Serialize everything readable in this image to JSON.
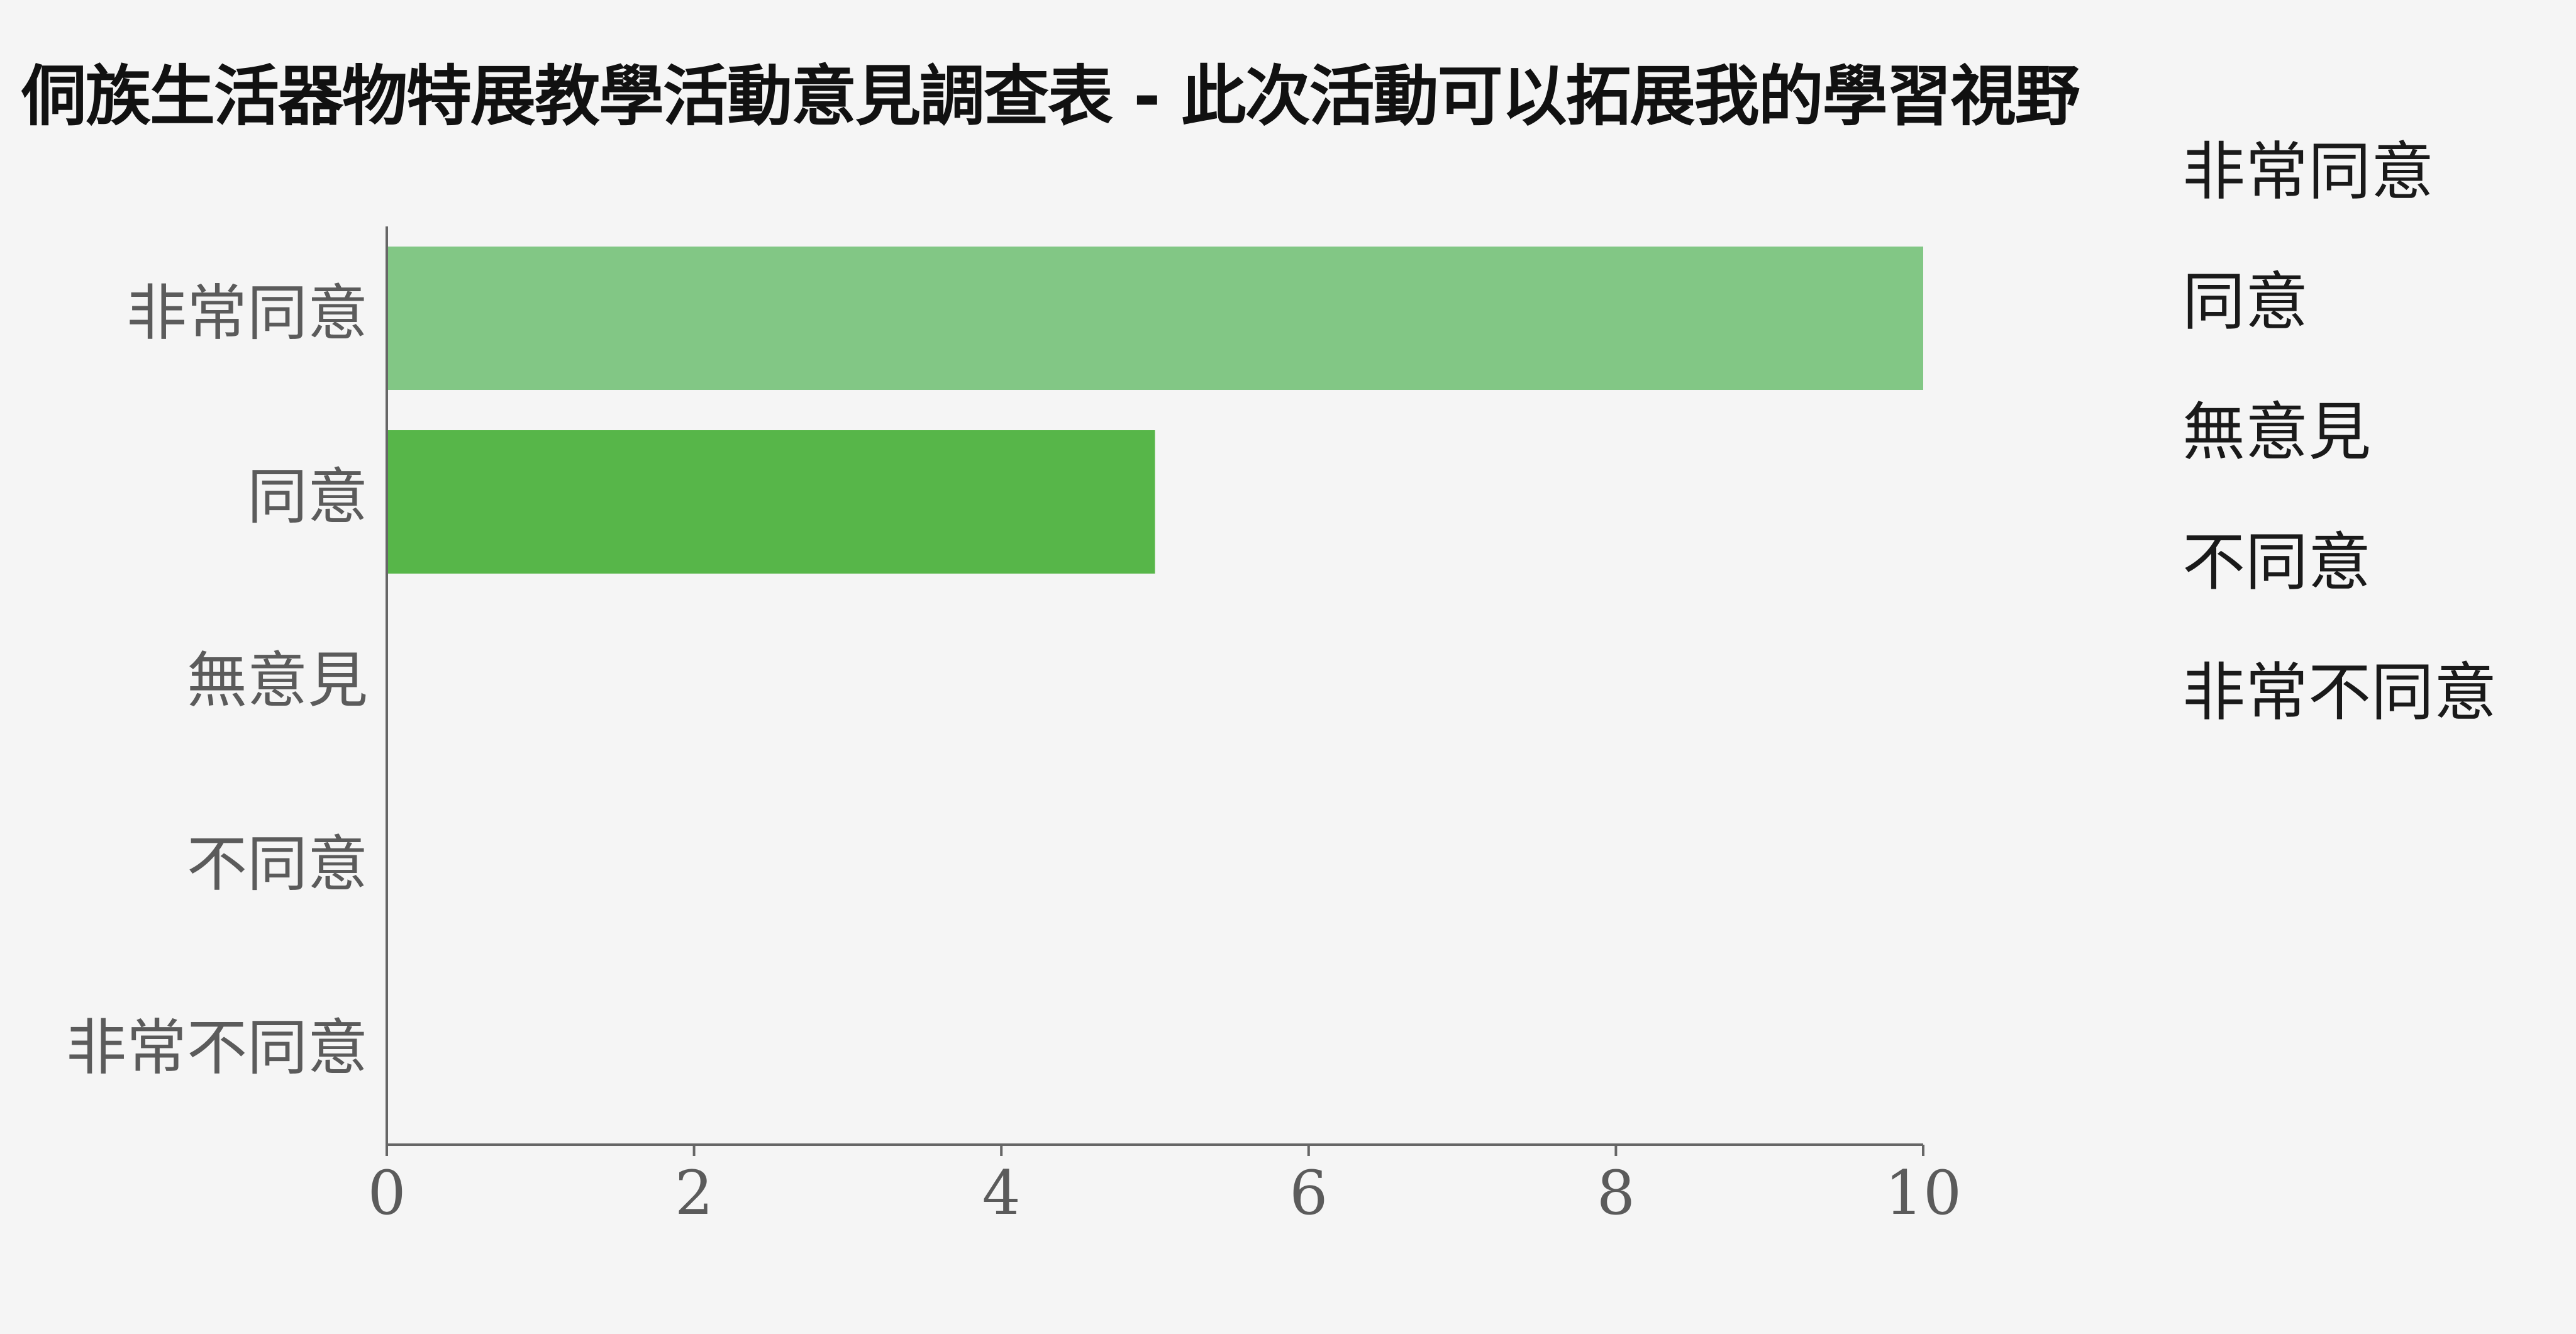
{
  "chart_data": {
    "type": "bar",
    "orientation": "horizontal",
    "title": "侗族生活器物特展教學活動意見調查表 - 此次活動可以拓展我的學習視野",
    "categories": [
      "非常同意",
      "同意",
      "無意見",
      "不同意",
      "非常不同意"
    ],
    "values": [
      10,
      5,
      0,
      0,
      0
    ],
    "bar_colors": [
      "#82c785",
      "#57b649",
      "#57b649",
      "#57b649",
      "#57b649"
    ],
    "xlim": [
      0,
      10
    ],
    "xticks": [
      0,
      2,
      4,
      6,
      8,
      10
    ],
    "xlabel": "",
    "ylabel": "",
    "grid": false,
    "legend": {
      "position": "right",
      "entries": [
        "非常同意",
        "同意",
        "無意見",
        "不同意",
        "非常不同意"
      ]
    }
  }
}
